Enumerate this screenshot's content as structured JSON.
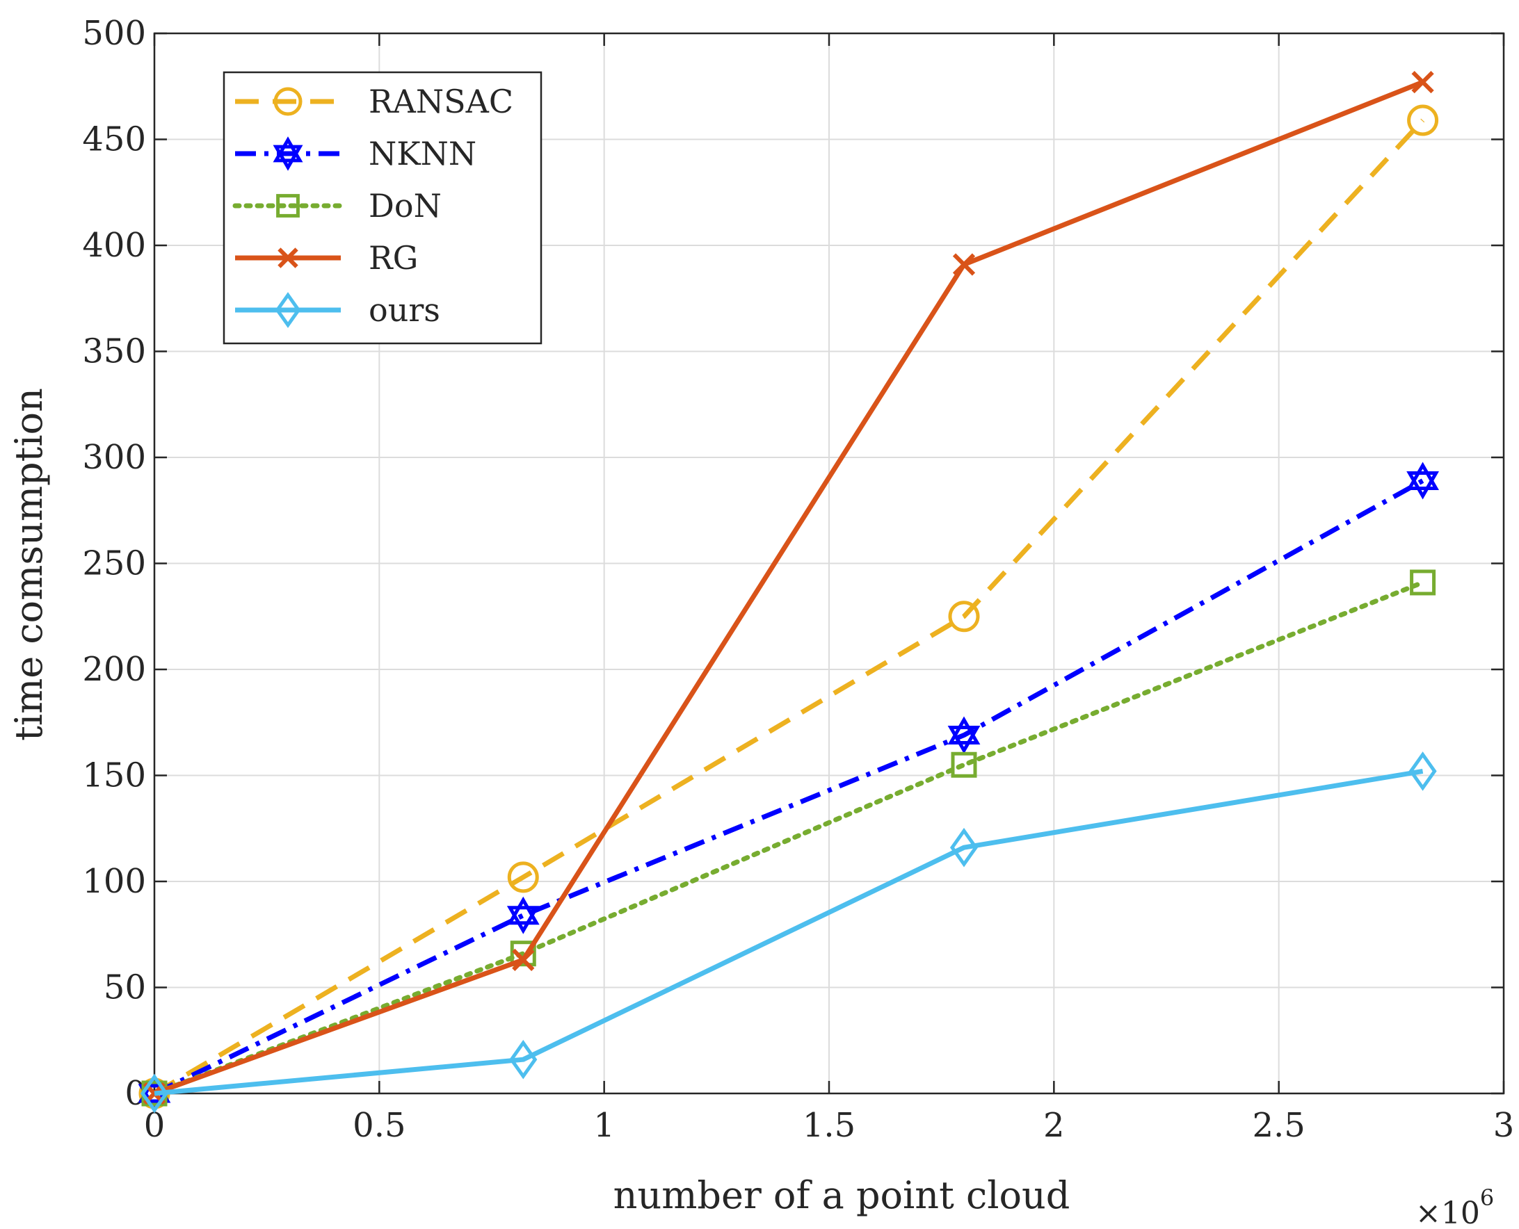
{
  "chart_data": {
    "type": "line",
    "xlabel": "number of a point cloud",
    "ylabel": "time comsumption",
    "x_multiplier": {
      "base": "×10",
      "exponent": "6"
    },
    "xlim": [
      0,
      3
    ],
    "ylim": [
      0,
      500
    ],
    "xticks": [
      0,
      0.5,
      1,
      1.5,
      2,
      2.5,
      3
    ],
    "xtick_labels": [
      "0",
      "0.5",
      "1",
      "1.5",
      "2",
      "2.5",
      "3"
    ],
    "yticks": [
      0,
      50,
      100,
      150,
      200,
      250,
      300,
      350,
      400,
      450,
      500
    ],
    "ytick_labels": [
      "0",
      "50",
      "100",
      "150",
      "200",
      "250",
      "300",
      "350",
      "400",
      "450",
      "500"
    ],
    "grid": true,
    "legend_position": "top-left",
    "x": [
      0,
      0.82,
      1.8,
      2.82
    ],
    "series": [
      {
        "name": "RANSAC",
        "values": [
          0,
          102,
          225,
          459
        ],
        "color": "#EDB120",
        "dash": "dashed",
        "marker": "circle"
      },
      {
        "name": "NKNN",
        "values": [
          0,
          84,
          169,
          289
        ],
        "color": "#0000FF",
        "dash": "dashdot",
        "marker": "hexagram"
      },
      {
        "name": "DoN",
        "values": [
          0,
          66,
          155,
          241
        ],
        "color": "#77AC30",
        "dash": "dotted",
        "marker": "square"
      },
      {
        "name": "RG",
        "values": [
          0,
          63,
          391,
          477
        ],
        "color": "#D95319",
        "dash": "solid",
        "marker": "x"
      },
      {
        "name": "ours",
        "values": [
          0,
          16,
          116,
          152
        ],
        "color": "#4DBEEE",
        "dash": "solid",
        "marker": "diamond"
      }
    ]
  }
}
